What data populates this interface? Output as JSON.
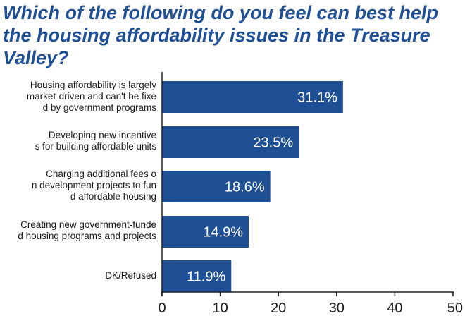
{
  "title": "Which of the following do you feel can best help the housing affordability issues in the Treasure Valley?",
  "colors": {
    "bar": "#1f4f94",
    "title": "#1f4f94",
    "axis": "#222222",
    "text": "#1a1a1a",
    "bar_label": "#ffffff"
  },
  "chart_data": {
    "type": "bar",
    "orientation": "horizontal",
    "title": "Which of the following do you feel can best help the housing affordability issues in the Treasure Valley?",
    "categories": [
      "Housing affordability is largely market-driven and can't be fixed by government programs",
      "Developing new incentives for building affordable units",
      "Charging additional fees on development projects to fund affordable housing",
      "Creating new government-funded housing programs and projects",
      "DK/Refused"
    ],
    "values": [
      31.1,
      23.5,
      18.6,
      14.9,
      11.9
    ],
    "value_labels": [
      "31.1%",
      "23.5%",
      "18.6%",
      "14.9%",
      "11.9%"
    ],
    "xlim": [
      0,
      50
    ],
    "xticks": [
      0,
      10,
      20,
      30,
      40,
      50
    ],
    "xtick_labels": [
      "0",
      "10",
      "20",
      "30",
      "40",
      "50"
    ],
    "xlabel": "",
    "ylabel": "",
    "grid": false,
    "legend": "none"
  }
}
